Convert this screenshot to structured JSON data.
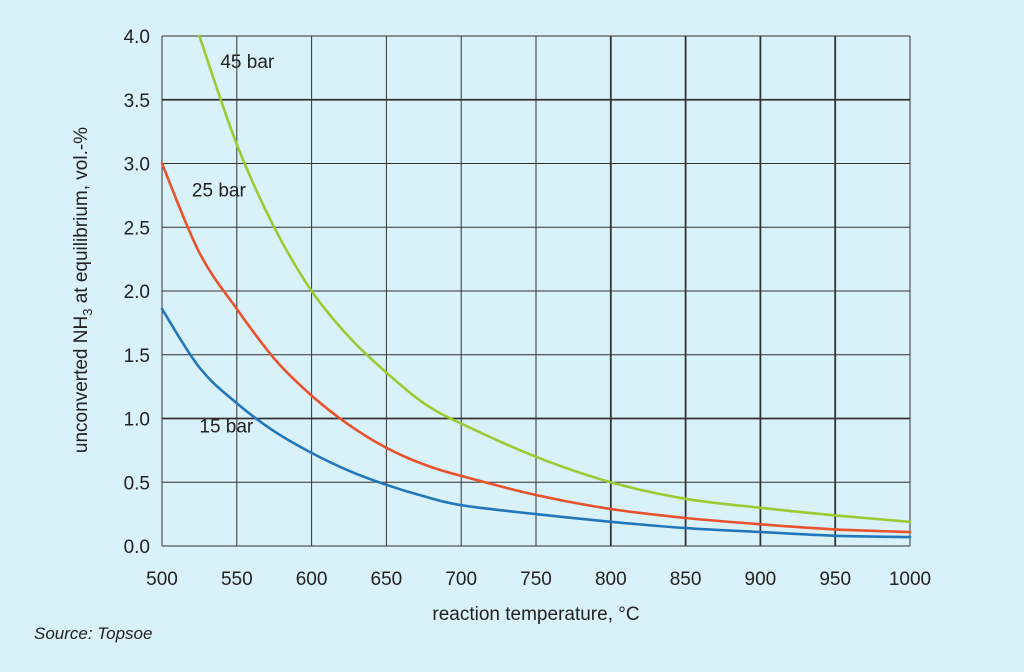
{
  "chart_data": {
    "type": "line",
    "xlabel": "reaction temperature, °C",
    "ylabel": {
      "prefix": "unconverted  NH",
      "subscript": "3",
      "suffix": " at equilibrium, vol.-%"
    },
    "xlim": [
      500,
      1000
    ],
    "ylim": [
      0,
      4
    ],
    "xticks": [
      "500",
      "550",
      "600",
      "650",
      "700",
      "750",
      "800",
      "850",
      "900",
      "950",
      "1000"
    ],
    "yticks": [
      "0.0",
      "0.5",
      "1.0",
      "1.5",
      "2.0",
      "2.5",
      "3.0",
      "3.5",
      "4.0"
    ],
    "grid": true,
    "series": [
      {
        "name": "15 bar",
        "color": "#2277bb",
        "label_at": [
          525,
          0.89
        ],
        "x": [
          500,
          525,
          550,
          575,
          600,
          625,
          650,
          675,
          700,
          750,
          800,
          850,
          900,
          950,
          1000
        ],
        "y": [
          1.86,
          1.4,
          1.12,
          0.9,
          0.73,
          0.59,
          0.48,
          0.39,
          0.32,
          0.25,
          0.19,
          0.14,
          0.11,
          0.08,
          0.07
        ]
      },
      {
        "name": "25 bar",
        "color": "#e8532e",
        "label_at": [
          520,
          2.74
        ],
        "x": [
          500,
          525,
          550,
          575,
          600,
          625,
          650,
          675,
          700,
          750,
          800,
          850,
          900,
          950,
          1000
        ],
        "y": [
          3.0,
          2.3,
          1.86,
          1.47,
          1.18,
          0.95,
          0.77,
          0.64,
          0.55,
          0.4,
          0.29,
          0.22,
          0.17,
          0.13,
          0.11
        ]
      },
      {
        "name": "45 bar",
        "color": "#99cc33",
        "label_at": [
          539,
          3.75
        ],
        "x": [
          525,
          550,
          575,
          600,
          625,
          650,
          675,
          700,
          750,
          800,
          850,
          900,
          950,
          1000
        ],
        "y": [
          4.0,
          3.15,
          2.5,
          2.0,
          1.64,
          1.36,
          1.12,
          0.96,
          0.7,
          0.5,
          0.37,
          0.3,
          0.24,
          0.19
        ]
      }
    ]
  },
  "source": "Source: Topsoe"
}
